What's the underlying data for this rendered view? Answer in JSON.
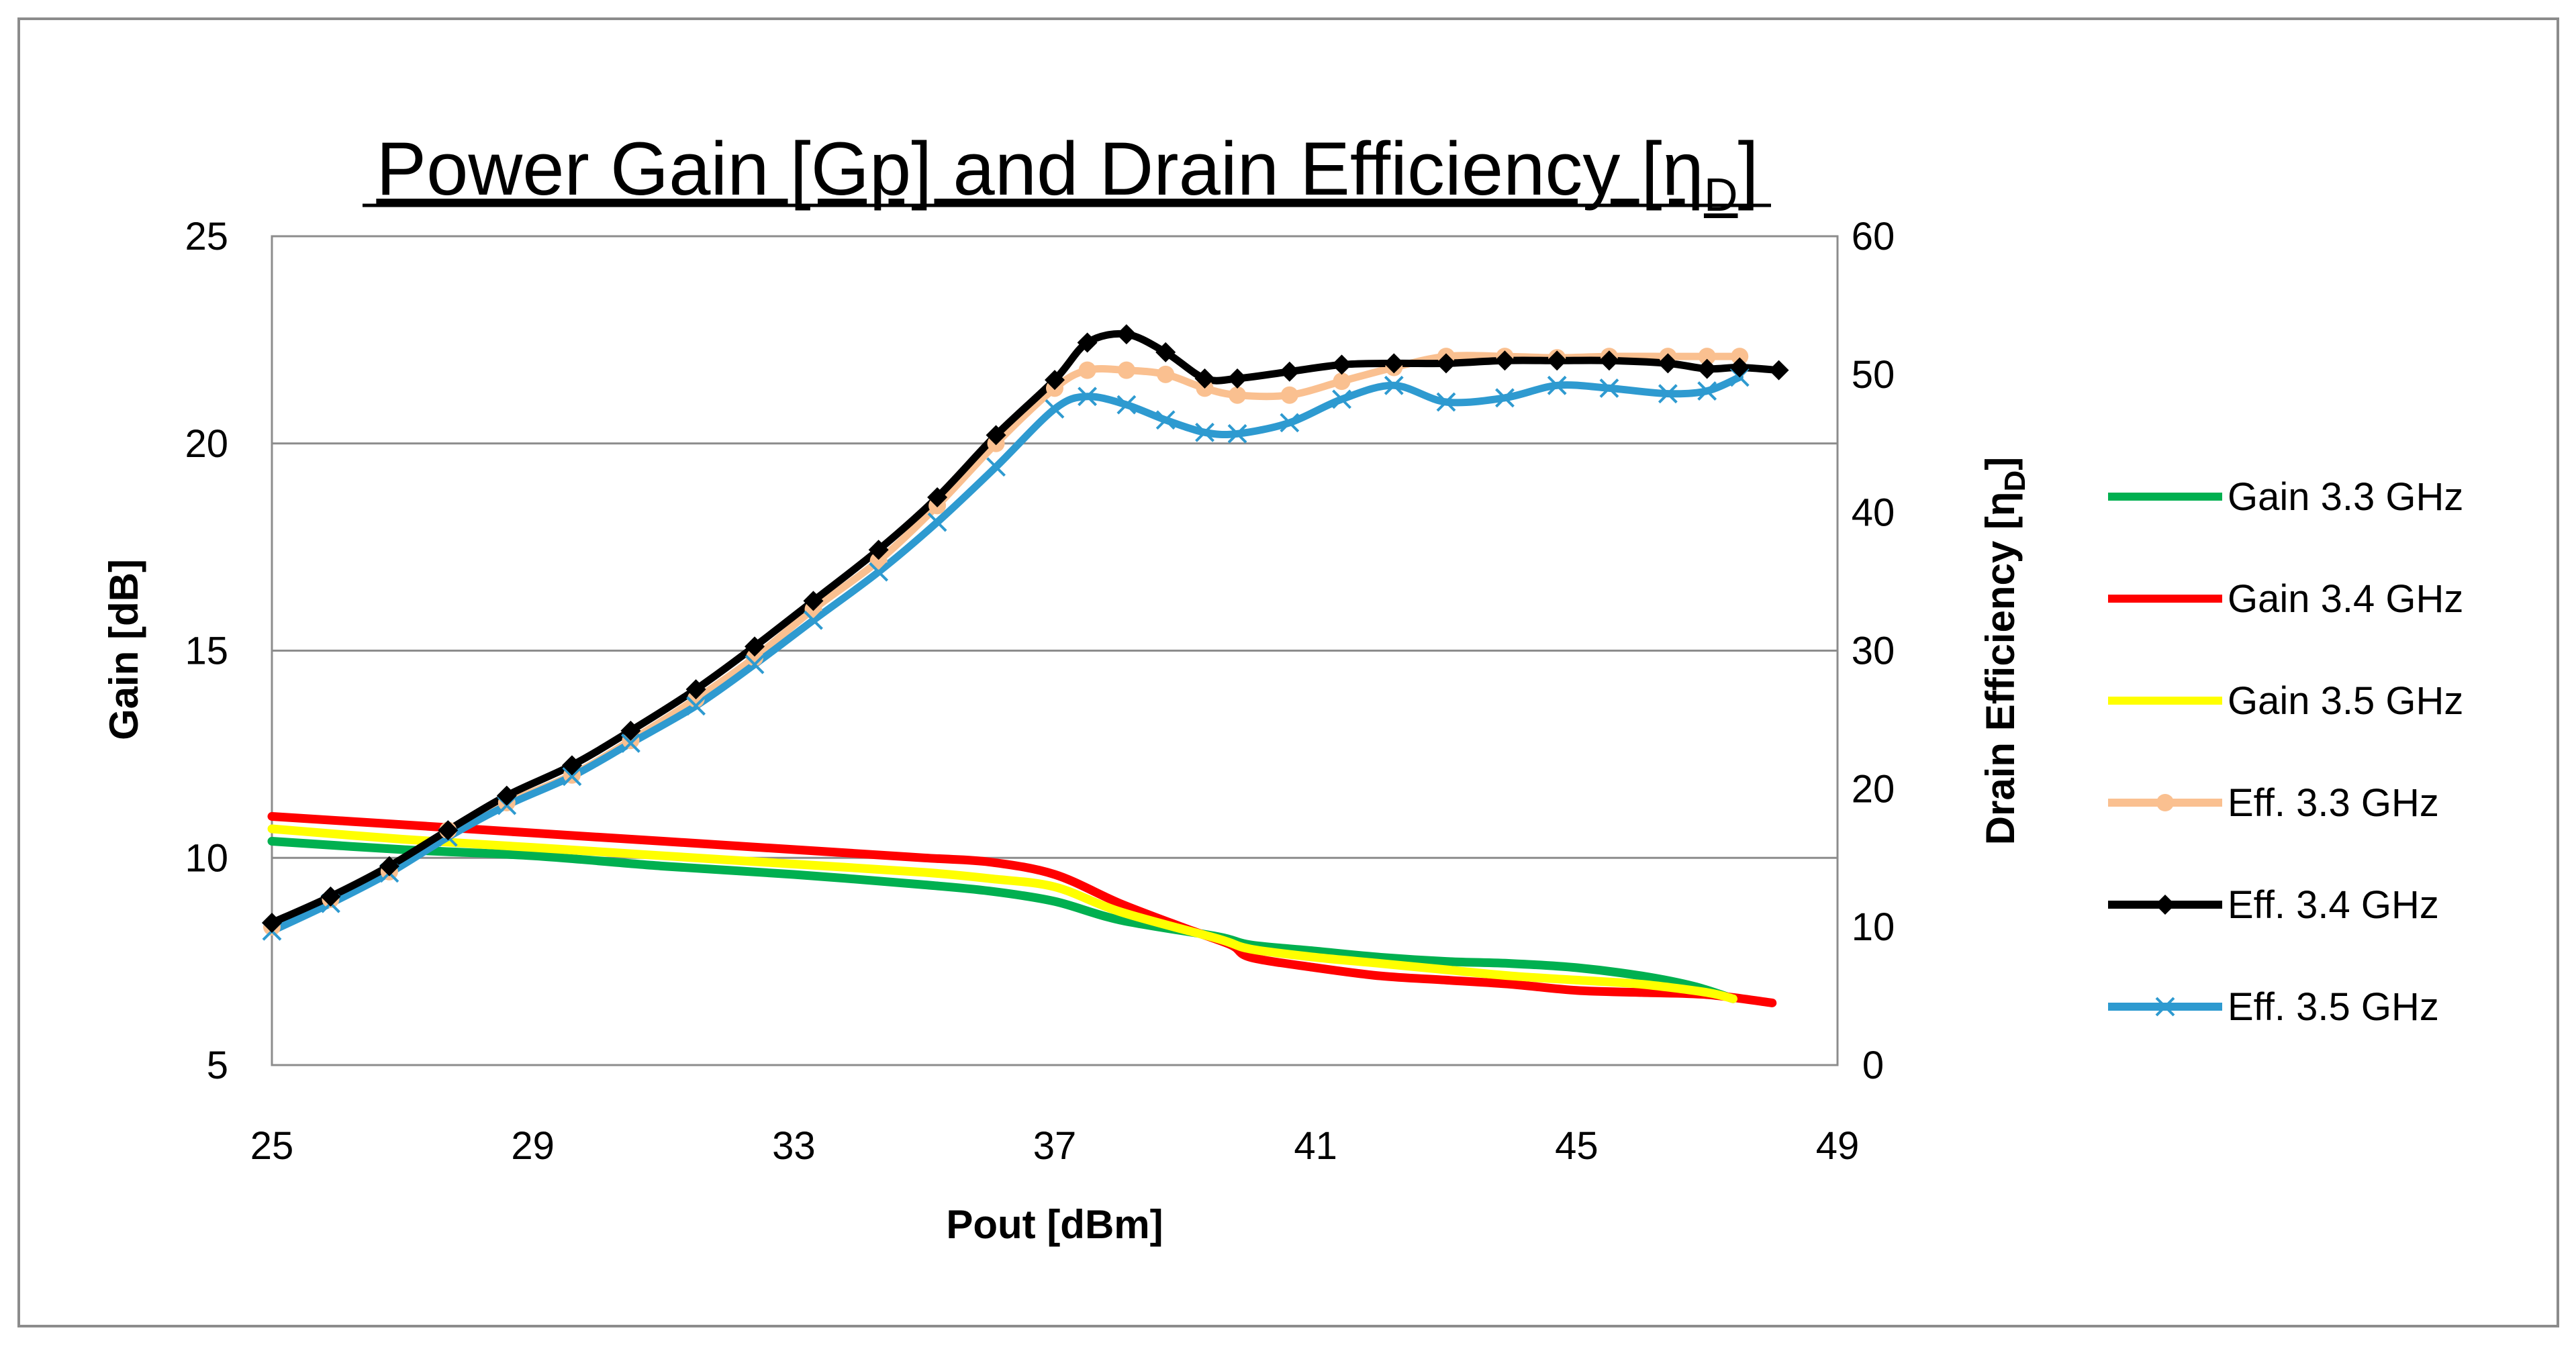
{
  "chart_data": {
    "type": "line",
    "title": "Power Gain [Gp] and Drain Efficiency [η",
    "title_sub": "D",
    "title_end": "]",
    "xlabel": "Pout [dBm]",
    "ylabel": "Gain [dB]",
    "y2label": "Drain Efficiency [η",
    "y2label_sub": "D",
    "y2label_end": "]",
    "xlim": [
      25,
      49
    ],
    "ylim": [
      5,
      25
    ],
    "y2lim": [
      0,
      60
    ],
    "xticks": [
      "25",
      "29",
      "33",
      "37",
      "41",
      "45",
      "49"
    ],
    "yticks": [
      "25",
      "20",
      "15",
      "10",
      "5"
    ],
    "y2ticks": [
      "60",
      "50",
      "40",
      "30",
      "20",
      "10",
      "0"
    ],
    "gridlines_y": [
      20,
      15,
      10
    ],
    "legend_position": "right",
    "series": [
      {
        "name": "Gain 3.3 GHz",
        "axis": "left",
        "color": "#00B050",
        "marker": "none",
        "x": [
          25,
          27,
          29,
          31,
          33,
          35,
          36,
          37,
          38,
          39.5,
          40,
          41,
          42,
          43,
          44,
          45,
          46,
          46.8,
          47.4
        ],
        "y": [
          10.4,
          10.2,
          10.05,
          9.8,
          9.6,
          9.35,
          9.2,
          8.95,
          8.5,
          8.1,
          7.9,
          7.75,
          7.6,
          7.5,
          7.45,
          7.35,
          7.15,
          6.9,
          6.6
        ]
      },
      {
        "name": "Gain 3.4 GHz",
        "axis": "left",
        "color": "#FF0000",
        "marker": "none",
        "x": [
          25,
          27,
          29,
          31,
          33,
          35,
          36,
          37,
          38,
          39,
          39.7,
          40,
          41,
          42,
          43,
          44,
          45,
          46,
          47,
          48
        ],
        "y": [
          11.0,
          10.8,
          10.6,
          10.4,
          10.2,
          10.0,
          9.9,
          9.6,
          8.9,
          8.3,
          7.9,
          7.6,
          7.35,
          7.15,
          7.05,
          6.95,
          6.8,
          6.75,
          6.7,
          6.5
        ]
      },
      {
        "name": "Gain 3.5 GHz",
        "axis": "left",
        "color": "#FFFF00",
        "marker": "none",
        "x": [
          25,
          27,
          29,
          31,
          33,
          35,
          36,
          37,
          38,
          39.5,
          40,
          41,
          42,
          43,
          44,
          45,
          46,
          47,
          47.4
        ],
        "y": [
          10.7,
          10.45,
          10.25,
          10.05,
          9.85,
          9.65,
          9.5,
          9.3,
          8.7,
          8.05,
          7.8,
          7.6,
          7.45,
          7.3,
          7.15,
          7.05,
          6.95,
          6.75,
          6.6
        ]
      },
      {
        "name": "Eff. 3.3 GHz",
        "axis": "right",
        "color": "#FAC090",
        "marker": "circle",
        "x": [
          25,
          25.9,
          26.8,
          27.7,
          28.6,
          29.6,
          30.5,
          31.5,
          32.4,
          33.3,
          34.3,
          35.2,
          36.1,
          37.0,
          37.5,
          38.1,
          38.7,
          39.3,
          39.8,
          40.6,
          41.4,
          42.2,
          43.0,
          43.9,
          44.7,
          45.5,
          46.4,
          47.0,
          47.5
        ],
        "y": [
          10,
          12,
          14,
          17,
          19,
          21,
          23.5,
          26.5,
          29.5,
          33,
          36.5,
          40.5,
          45,
          49,
          50.3,
          50.3,
          50,
          49,
          48.5,
          48.5,
          49.5,
          50.5,
          51.3,
          51.3,
          51.2,
          51.3,
          51.3,
          51.3,
          51.3
        ]
      },
      {
        "name": "Eff. 3.4 GHz",
        "axis": "right",
        "color": "#000000",
        "marker": "diamond",
        "x": [
          25,
          25.9,
          26.8,
          27.7,
          28.6,
          29.6,
          30.5,
          31.5,
          32.4,
          33.3,
          34.3,
          35.2,
          36.1,
          37.0,
          37.5,
          38.1,
          38.7,
          39.3,
          39.8,
          40.6,
          41.4,
          42.2,
          43.0,
          43.9,
          44.7,
          45.5,
          46.4,
          47.0,
          47.5,
          48.1
        ],
        "y": [
          10.3,
          12.2,
          14.4,
          17,
          19.5,
          21.7,
          24.2,
          27.2,
          30.3,
          33.6,
          37.3,
          41.1,
          45.6,
          49.6,
          52.3,
          52.9,
          51.6,
          49.7,
          49.7,
          50.2,
          50.7,
          50.8,
          50.8,
          51.0,
          51.0,
          51.0,
          50.8,
          50.4,
          50.5,
          50.3
        ]
      },
      {
        "name": "Eff. 3.5 GHz",
        "axis": "right",
        "color": "#2E9AD0",
        "marker": "x",
        "x": [
          25,
          25.9,
          26.8,
          27.7,
          28.6,
          29.6,
          30.5,
          31.5,
          32.4,
          33.3,
          34.3,
          35.2,
          36.1,
          37.0,
          37.5,
          38.1,
          38.7,
          39.3,
          39.8,
          40.6,
          41.4,
          42.2,
          43.0,
          43.9,
          44.7,
          45.5,
          46.4,
          47.0,
          47.5
        ],
        "y": [
          9.7,
          11.7,
          13.9,
          16.5,
          18.8,
          20.9,
          23.3,
          26.0,
          29.0,
          32.2,
          35.7,
          39.3,
          43.3,
          47.5,
          48.4,
          47.8,
          46.7,
          45.8,
          45.7,
          46.5,
          48.2,
          49.2,
          48.0,
          48.3,
          49.2,
          49.0,
          48.6,
          48.8,
          49.8
        ]
      }
    ]
  }
}
